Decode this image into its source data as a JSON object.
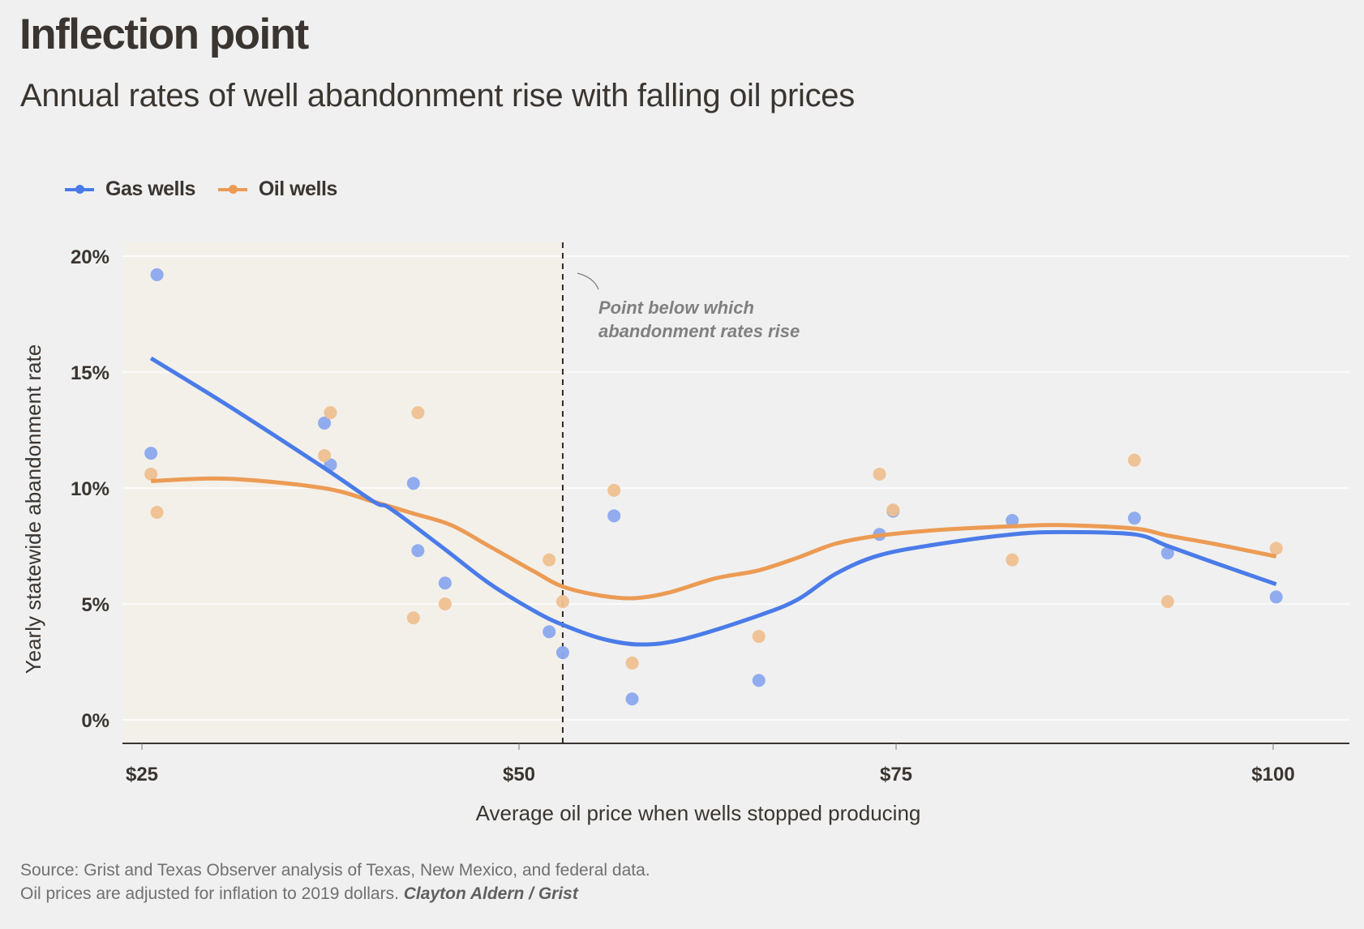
{
  "header": {
    "title": "Inflection point",
    "subtitle": "Annual rates of well abandonment rise with falling oil prices"
  },
  "legend": [
    {
      "label": "Gas wells",
      "color": "#4a7be8"
    },
    {
      "label": "Oil wells",
      "color": "#ec9b54"
    }
  ],
  "annotation": {
    "line1": "Point below which",
    "line2": "abandonment rates rise"
  },
  "footer": {
    "source": "Source: Grist and Texas Observer analysis of Texas, New Mexico, and federal data.",
    "note": "Oil prices are adjusted for inflation to 2019 dollars.",
    "credit": "Clayton Aldern / Grist"
  },
  "colors": {
    "background": "#f0f0f0",
    "shaded_region": "#f3f0ea",
    "gas": "#4a7be8",
    "gas_point": "#8aa8ee",
    "oil": "#ec9b54",
    "oil_point": "#eec090",
    "text": "#3a3530",
    "annotation": "#808080"
  },
  "chart_data": {
    "type": "scatter",
    "title": "Inflection point",
    "subtitle": "Annual rates of well abandonment rise with falling oil prices",
    "xlabel": "Average oil price when wells stopped producing",
    "ylabel": "Yearly statewide abandonment rate",
    "xlim": [
      24.2,
      104.9
    ],
    "ylim": [
      -1,
      20.5
    ],
    "x_ticks": [
      25,
      50,
      75,
      100
    ],
    "x_tick_labels": [
      "$25",
      "$50",
      "$75",
      "$100"
    ],
    "y_ticks": [
      0,
      5,
      10,
      15,
      20
    ],
    "y_tick_labels": [
      "0%",
      "5%",
      "10%",
      "15%",
      "20%"
    ],
    "grid": "horizontal",
    "legend_position": "top-left",
    "threshold": {
      "x": 52.9,
      "label": "Point below which abandonment rates rise",
      "shaded_below": true
    },
    "series": [
      {
        "name": "Gas wells",
        "points": [
          [
            26.0,
            19.2
          ],
          [
            25.6,
            11.5
          ],
          [
            37.1,
            12.8
          ],
          [
            37.5,
            11.0
          ],
          [
            43.0,
            10.2
          ],
          [
            43.3,
            7.3
          ],
          [
            45.1,
            5.9
          ],
          [
            52.0,
            3.8
          ],
          [
            52.9,
            2.9
          ],
          [
            56.3,
            8.8
          ],
          [
            57.5,
            0.9
          ],
          [
            65.9,
            1.7
          ],
          [
            73.9,
            8.0
          ],
          [
            74.8,
            9.0
          ],
          [
            82.7,
            8.6
          ],
          [
            90.8,
            8.7
          ],
          [
            93.0,
            7.2
          ],
          [
            100.2,
            5.3
          ]
        ],
        "trend": [
          [
            25.6,
            15.6
          ],
          [
            30.6,
            13.6
          ],
          [
            37.0,
            10.9
          ],
          [
            40.4,
            9.4
          ],
          [
            41.5,
            9.1
          ],
          [
            45.0,
            7.4
          ],
          [
            48.0,
            5.9
          ],
          [
            51.0,
            4.7
          ],
          [
            52.9,
            4.1
          ],
          [
            55.5,
            3.5
          ],
          [
            58.1,
            3.25
          ],
          [
            61.0,
            3.5
          ],
          [
            65.9,
            4.5
          ],
          [
            68.5,
            5.2
          ],
          [
            71.0,
            6.3
          ],
          [
            73.9,
            7.1
          ],
          [
            78.0,
            7.6
          ],
          [
            82.7,
            8.0
          ],
          [
            86.0,
            8.1
          ],
          [
            90.8,
            8.0
          ],
          [
            93.0,
            7.5
          ],
          [
            96.0,
            6.8
          ],
          [
            100.2,
            5.85
          ]
        ]
      },
      {
        "name": "Oil wells",
        "points": [
          [
            25.6,
            10.6
          ],
          [
            26.0,
            8.95
          ],
          [
            37.5,
            13.25
          ],
          [
            37.1,
            11.4
          ],
          [
            43.3,
            13.25
          ],
          [
            43.0,
            4.4
          ],
          [
            45.1,
            5.0
          ],
          [
            52.0,
            6.9
          ],
          [
            52.9,
            5.1
          ],
          [
            56.3,
            9.9
          ],
          [
            57.5,
            2.45
          ],
          [
            65.9,
            3.6
          ],
          [
            73.9,
            10.6
          ],
          [
            74.8,
            9.05
          ],
          [
            82.7,
            6.9
          ],
          [
            90.8,
            11.2
          ],
          [
            93.0,
            5.1
          ],
          [
            100.2,
            7.4
          ]
        ],
        "trend": [
          [
            25.6,
            10.3
          ],
          [
            30.6,
            10.4
          ],
          [
            37.0,
            10.0
          ],
          [
            40.4,
            9.4
          ],
          [
            43.0,
            8.9
          ],
          [
            45.5,
            8.4
          ],
          [
            48.0,
            7.5
          ],
          [
            51.0,
            6.4
          ],
          [
            52.9,
            5.75
          ],
          [
            55.5,
            5.35
          ],
          [
            57.7,
            5.25
          ],
          [
            60.0,
            5.5
          ],
          [
            63.0,
            6.1
          ],
          [
            65.9,
            6.45
          ],
          [
            68.5,
            7.0
          ],
          [
            71.0,
            7.6
          ],
          [
            73.9,
            7.95
          ],
          [
            78.0,
            8.2
          ],
          [
            82.7,
            8.35
          ],
          [
            86.0,
            8.4
          ],
          [
            90.8,
            8.25
          ],
          [
            93.0,
            7.95
          ],
          [
            96.0,
            7.6
          ],
          [
            100.2,
            7.05
          ]
        ]
      }
    ]
  }
}
